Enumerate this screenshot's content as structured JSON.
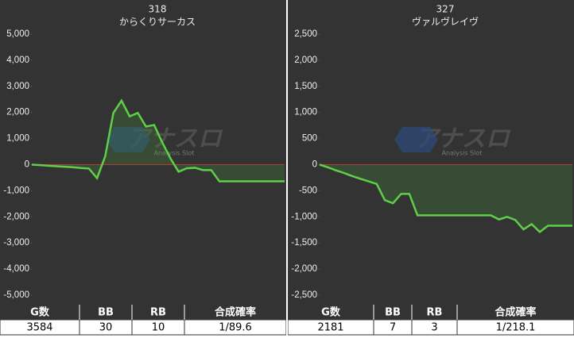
{
  "chart_data": [
    {
      "type": "line",
      "title": "318",
      "subtitle": "からくりサーカス",
      "color": "#5fcf4a",
      "zero_line_color": "#c0302a",
      "grid": false,
      "watermark": {
        "title": "アナスロ",
        "subtitle": "Analysis Slot"
      },
      "values": [
        0,
        -20,
        -40,
        -60,
        -80,
        -100,
        -130,
        -150,
        -520,
        320,
        1980,
        2450,
        1850,
        1980,
        1460,
        1520,
        850,
        240,
        -270,
        -140,
        -120,
        -210,
        -210,
        -640,
        -640,
        -640,
        -640,
        -640,
        -640,
        -640,
        -640,
        -640
      ],
      "ylim": [
        -5000,
        5000
      ],
      "yticks": [
        {
          "value": 5000,
          "label": "5,000"
        },
        {
          "value": 4000,
          "label": "4,000"
        },
        {
          "value": 3000,
          "label": "3,000"
        },
        {
          "value": 2000,
          "label": "2,000"
        },
        {
          "value": 1000,
          "label": "1,000"
        },
        0,
        {
          "value": -1000,
          "label": "-1,000"
        },
        {
          "value": -2000,
          "label": "-2,000"
        },
        {
          "value": -3000,
          "label": "-3,000"
        },
        {
          "value": -4000,
          "label": "-4,000"
        },
        {
          "value": -5000,
          "label": "-5,000"
        }
      ],
      "table": {
        "headers": [
          "G数",
          "BB",
          "RB",
          "合成確率"
        ],
        "values": [
          3584,
          30,
          10,
          "1/89.6"
        ]
      }
    },
    {
      "type": "line",
      "title": "327",
      "subtitle": "ヴァルヴレイヴ",
      "color": "#5fcf4a",
      "zero_line_color": "#c0302a",
      "grid": false,
      "watermark": {
        "title": "アナスロ",
        "subtitle": "Analysis Slot"
      },
      "values": [
        0,
        -50,
        -110,
        -160,
        -220,
        -270,
        -320,
        -370,
        -680,
        -740,
        -560,
        -560,
        -970,
        -970,
        -970,
        -970,
        -970,
        -970,
        -970,
        -970,
        -970,
        -970,
        -1050,
        -1000,
        -1060,
        -1240,
        -1140,
        -1290,
        -1170,
        -1170,
        -1170,
        -1170
      ],
      "ylim": [
        -2500,
        2500
      ],
      "yticks": [
        {
          "value": 2500,
          "label": "2,500"
        },
        {
          "value": 2000,
          "label": "2,000"
        },
        {
          "value": 1500,
          "label": "1,500"
        },
        {
          "value": 1000,
          "label": "1,000"
        },
        500,
        0,
        -500,
        {
          "value": -1000,
          "label": "-1,000"
        },
        {
          "value": -1500,
          "label": "-1,500"
        },
        {
          "value": -2000,
          "label": "-2,000"
        },
        {
          "value": -2500,
          "label": "-2,500"
        }
      ],
      "table": {
        "headers": [
          "G数",
          "BB",
          "RB",
          "合成確率"
        ],
        "values": [
          2181,
          7,
          3,
          "1/218.1"
        ]
      }
    }
  ]
}
